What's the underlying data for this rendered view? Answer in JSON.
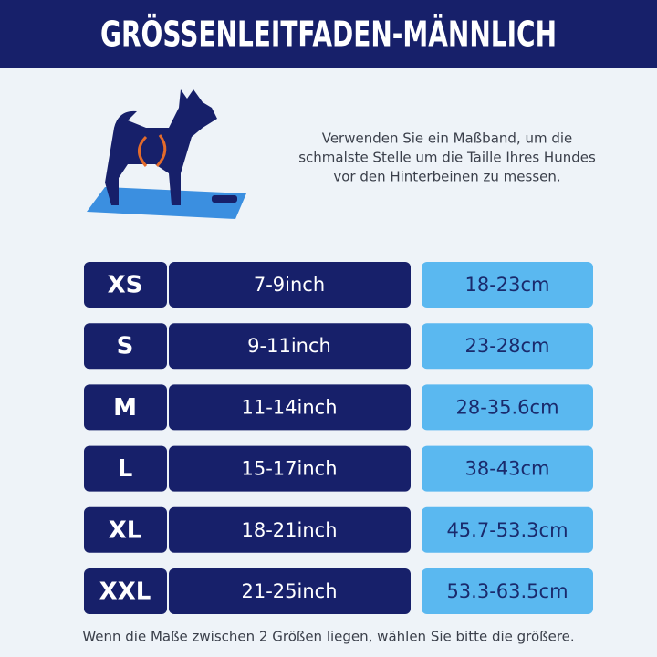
{
  "header": {
    "title": "GRÖSSENLEITFADEN-MÄNNLICH"
  },
  "instruction": {
    "lines": [
      "Verwenden Sie ein Maßband, um die",
      "schmalste Stelle um die Taille Ihres Hundes",
      "vor den Hinterbeinen zu messen."
    ]
  },
  "table": {
    "rows": [
      [
        "XS",
        "7-9inch",
        "18-23cm"
      ],
      [
        "S",
        "9-11inch",
        "23-28cm"
      ],
      [
        "M",
        "11-14inch",
        "28-35.6cm"
      ],
      [
        "L",
        "15-17inch",
        "38-43cm"
      ],
      [
        "XL",
        "18-21inch",
        "45.7-53.3cm"
      ],
      [
        "XXL",
        "21-25inch",
        "53.3-63.5cm"
      ]
    ]
  },
  "footer": {
    "note": "Wenn die Maße zwischen 2 Größen liegen, wählen Sie bitte die größere."
  }
}
